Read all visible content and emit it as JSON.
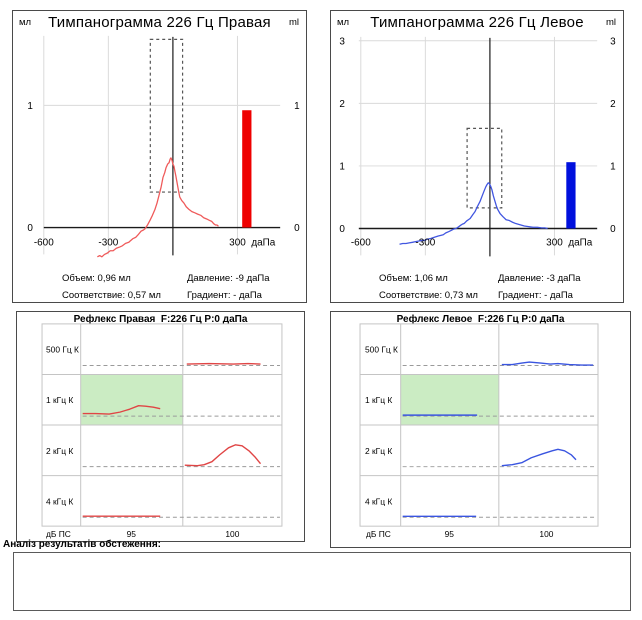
{
  "tymp": {
    "right": {
      "unit_left": "мл",
      "unit_right": "ml",
      "title": "Тимпанограмма 226 Гц Правая",
      "stats": {
        "volume": "Объем: 0,96 мл",
        "compliance": "Соответствие: 0,57 мл",
        "pressure": "Давление: -9 даПа",
        "gradient": "Градиент: - даПа"
      }
    },
    "left": {
      "unit_left": "мл",
      "unit_right": "ml",
      "title": "Тимпанограмма 226 Гц Левое",
      "stats": {
        "volume": "Объем: 1,06 мл",
        "compliance": "Соответствие: 0,73 мл",
        "pressure": "Давление: -3 даПа",
        "gradient": "Градиент: - даПа"
      }
    }
  },
  "reflex": {
    "right": {
      "title": "Рефлекс Правая  F:226 Гц P:0 даПа"
    },
    "left": {
      "title": "Рефлекс Левое  F:226 Гц P:0 даПа"
    }
  },
  "analysis": {
    "label": "Аналіз результатів обстеження:",
    "content": ""
  },
  "chart_data": [
    {
      "id": "tymp_right",
      "type": "line",
      "title": "Тимпанограмма 226 Гц Правая",
      "xlabel": "даПа",
      "ylabel_left": "мл",
      "ylabel_right": "ml",
      "xlim": [
        -600,
        500
      ],
      "ylim": [
        0,
        1.57
      ],
      "x_ticks": [
        -600,
        -300,
        300
      ],
      "x_tick_labels": [
        "-600",
        "-300",
        "300"
      ],
      "y_ticks": [
        0,
        1
      ],
      "y_tick_labels": [
        "0",
        "1"
      ],
      "pressure_line_daPa": 0,
      "normative_box": {
        "x": [
          -105,
          45
        ],
        "y": [
          0.29,
          1.54
        ]
      },
      "ear_canal_bar": {
        "x": [
          322,
          365
        ],
        "value": 0.96
      },
      "peak": {
        "pressure_daPa": -9,
        "compliance_ml": 0.57
      },
      "color_curve": "#ef5a5a",
      "color_bar": "#ee0000",
      "curve": [
        [
          -351,
          -0.24
        ],
        [
          -340,
          -0.23
        ],
        [
          -330,
          -0.24
        ],
        [
          -318,
          -0.22
        ],
        [
          -305,
          -0.21
        ],
        [
          -291,
          -0.19
        ],
        [
          -278,
          -0.19
        ],
        [
          -263,
          -0.17
        ],
        [
          -248,
          -0.16
        ],
        [
          -235,
          -0.15
        ],
        [
          -220,
          -0.13
        ],
        [
          -205,
          -0.12
        ],
        [
          -198,
          -0.11
        ],
        [
          -185,
          -0.09
        ],
        [
          -172,
          -0.08
        ],
        [
          -162,
          -0.06
        ],
        [
          -148,
          -0.03
        ],
        [
          -137,
          -0.02
        ],
        [
          -129,
          -0.01
        ],
        [
          -118,
          0.02
        ],
        [
          -106,
          0.06
        ],
        [
          -95,
          0.1
        ],
        [
          -83,
          0.15
        ],
        [
          -74,
          0.2
        ],
        [
          -65,
          0.26
        ],
        [
          -55,
          0.33
        ],
        [
          -46,
          0.41
        ],
        [
          -38,
          0.45
        ],
        [
          -32,
          0.49
        ],
        [
          -24,
          0.52
        ],
        [
          -18,
          0.53
        ],
        [
          -13,
          0.56
        ],
        [
          -9,
          0.57
        ],
        [
          -4,
          0.55
        ],
        [
          0,
          0.52
        ],
        [
          5,
          0.5
        ],
        [
          9,
          0.46
        ],
        [
          14,
          0.42
        ],
        [
          18,
          0.38
        ],
        [
          23,
          0.33
        ],
        [
          27,
          0.29
        ],
        [
          32,
          0.25
        ],
        [
          41,
          0.22
        ],
        [
          51,
          0.2
        ],
        [
          62,
          0.17
        ],
        [
          74,
          0.15
        ],
        [
          88,
          0.13
        ],
        [
          102,
          0.12
        ],
        [
          115,
          0.11
        ],
        [
          129,
          0.1
        ],
        [
          143,
          0.08
        ],
        [
          157,
          0.07
        ],
        [
          168,
          0.06
        ],
        [
          180,
          0.05
        ],
        [
          190,
          0.03
        ],
        [
          198,
          0.02
        ],
        [
          205,
          0.02
        ],
        [
          212,
          0.01
        ]
      ]
    },
    {
      "id": "tymp_left",
      "type": "line",
      "title": "Тимпанограмма 226 Гц Левое",
      "xlabel": "даПа",
      "ylabel_left": "мл",
      "ylabel_right": "ml",
      "xlim": [
        -610,
        500
      ],
      "ylim": [
        0,
        3.06
      ],
      "x_ticks": [
        -600,
        -300,
        300
      ],
      "x_tick_labels": [
        "-600",
        "-300",
        "300"
      ],
      "y_ticks": [
        0,
        1,
        2,
        3
      ],
      "y_tick_labels": [
        "0",
        "1",
        "2",
        "3"
      ],
      "pressure_line_daPa": 0,
      "normative_box": {
        "x": [
          -106,
          55
        ],
        "y": [
          0.33,
          1.6
        ]
      },
      "ear_canal_bar": {
        "x": [
          355,
          398
        ],
        "value": 1.06
      },
      "peak": {
        "pressure_daPa": -3,
        "compliance_ml": 0.73
      },
      "color_curve": "#4156e0",
      "color_bar": "#0010dd",
      "curve": [
        [
          -420,
          -0.25
        ],
        [
          -405,
          -0.24
        ],
        [
          -390,
          -0.24
        ],
        [
          -375,
          -0.23
        ],
        [
          -360,
          -0.22
        ],
        [
          -345,
          -0.21
        ],
        [
          -330,
          -0.2
        ],
        [
          -315,
          -0.19
        ],
        [
          -305,
          -0.19
        ],
        [
          -290,
          -0.17
        ],
        [
          -275,
          -0.16
        ],
        [
          -258,
          -0.14
        ],
        [
          -240,
          -0.12
        ],
        [
          -228,
          -0.11
        ],
        [
          -217,
          -0.1
        ],
        [
          -205,
          -0.07
        ],
        [
          -192,
          -0.05
        ],
        [
          -180,
          -0.03
        ],
        [
          -168,
          -0.01
        ],
        [
          -158,
          0.0
        ],
        [
          -148,
          0.02
        ],
        [
          -136,
          0.05
        ],
        [
          -128,
          0.07
        ],
        [
          -120,
          0.08
        ],
        [
          -108,
          0.12
        ],
        [
          -100,
          0.14
        ],
        [
          -92,
          0.16
        ],
        [
          -80,
          0.22
        ],
        [
          -69,
          0.27
        ],
        [
          -58,
          0.35
        ],
        [
          -46,
          0.43
        ],
        [
          -36,
          0.52
        ],
        [
          -28,
          0.59
        ],
        [
          -20,
          0.66
        ],
        [
          -14,
          0.7
        ],
        [
          -8,
          0.73
        ],
        [
          -3,
          0.72
        ],
        [
          3,
          0.68
        ],
        [
          9,
          0.62
        ],
        [
          16,
          0.52
        ],
        [
          23,
          0.44
        ],
        [
          30,
          0.36
        ],
        [
          37,
          0.3
        ],
        [
          47,
          0.24
        ],
        [
          60,
          0.19
        ],
        [
          75,
          0.14
        ],
        [
          88,
          0.13
        ],
        [
          105,
          0.1
        ],
        [
          120,
          0.08
        ],
        [
          140,
          0.06
        ],
        [
          160,
          0.04
        ],
        [
          180,
          0.03
        ],
        [
          200,
          0.02
        ],
        [
          220,
          0.02
        ],
        [
          240,
          0.01
        ],
        [
          255,
          0.01
        ],
        [
          268,
          0.0
        ]
      ]
    },
    {
      "id": "reflex_right",
      "type": "line",
      "title": "Рефлекс Правая  F:226 Гц P:0 даПа",
      "xlabel": "дБ ПС",
      "rows": [
        "500 Гц К",
        "1 кГц К",
        "2 кГц К",
        "4 кГц К"
      ],
      "levels": [
        "95",
        "100"
      ],
      "highlight_cell": {
        "row": 1,
        "level": "95"
      },
      "highlight_color": "#cbecc3",
      "color": "#e04545",
      "traces": [
        {
          "row": 0,
          "level": "100",
          "points": [
            [
              0.02,
              1.5
            ],
            [
              0.25,
              2
            ],
            [
              0.5,
              1.5
            ],
            [
              0.65,
              2
            ],
            [
              0.78,
              1.5
            ]
          ]
        },
        {
          "row": 1,
          "level": "95",
          "points": [
            [
              0,
              2.5
            ],
            [
              0.13,
              2.5
            ],
            [
              0.27,
              2
            ],
            [
              0.38,
              4
            ],
            [
              0.48,
              7
            ],
            [
              0.57,
              10.5
            ],
            [
              0.64,
              10
            ],
            [
              0.72,
              9
            ],
            [
              0.79,
              7.5
            ]
          ]
        },
        {
          "row": 2,
          "level": "100",
          "points": [
            [
              0,
              1.5
            ],
            [
              0.13,
              1
            ],
            [
              0.2,
              2
            ],
            [
              0.28,
              5
            ],
            [
              0.36,
              12
            ],
            [
              0.45,
              19
            ],
            [
              0.52,
              22
            ],
            [
              0.59,
              21
            ],
            [
              0.66,
              16
            ],
            [
              0.72,
              10
            ],
            [
              0.78,
              3
            ]
          ]
        },
        {
          "row": 3,
          "level": "95",
          "points": [
            [
              0,
              1
            ],
            [
              0.79,
              1
            ]
          ]
        }
      ]
    },
    {
      "id": "reflex_left",
      "type": "line",
      "title": "Рефлекс Левое  F:226 Гц P:0 даПа",
      "xlabel": "дБ ПС",
      "rows": [
        "500 Гц К",
        "1 кГц К",
        "2 кГц К",
        "4 кГц К"
      ],
      "levels": [
        "95",
        "100"
      ],
      "highlight_cell": {
        "row": 1,
        "level": "95"
      },
      "highlight_color": "#cbecc3",
      "color": "#3a55e0",
      "traces": [
        {
          "row": 0,
          "level": "100",
          "points": [
            [
              0.01,
              1
            ],
            [
              0.12,
              1
            ],
            [
              0.22,
              2.5
            ],
            [
              0.3,
              3.5
            ],
            [
              0.42,
              2.5
            ],
            [
              0.52,
              1.5
            ],
            [
              0.6,
              2
            ],
            [
              0.72,
              1
            ],
            [
              0.85,
              0.5
            ],
            [
              0.97,
              0.5
            ]
          ]
        },
        {
          "row": 1,
          "level": "95",
          "points": [
            [
              0,
              1
            ],
            [
              0.79,
              1
            ]
          ]
        },
        {
          "row": 2,
          "level": "100",
          "points": [
            [
              0.01,
              1
            ],
            [
              0.12,
              2
            ],
            [
              0.22,
              4
            ],
            [
              0.32,
              9
            ],
            [
              0.44,
              13
            ],
            [
              0.54,
              16
            ],
            [
              0.6,
              17.5
            ],
            [
              0.67,
              16
            ],
            [
              0.74,
              12
            ],
            [
              0.79,
              7
            ]
          ]
        },
        {
          "row": 3,
          "level": "95",
          "points": [
            [
              0,
              1
            ],
            [
              0.78,
              1
            ]
          ]
        }
      ]
    }
  ]
}
